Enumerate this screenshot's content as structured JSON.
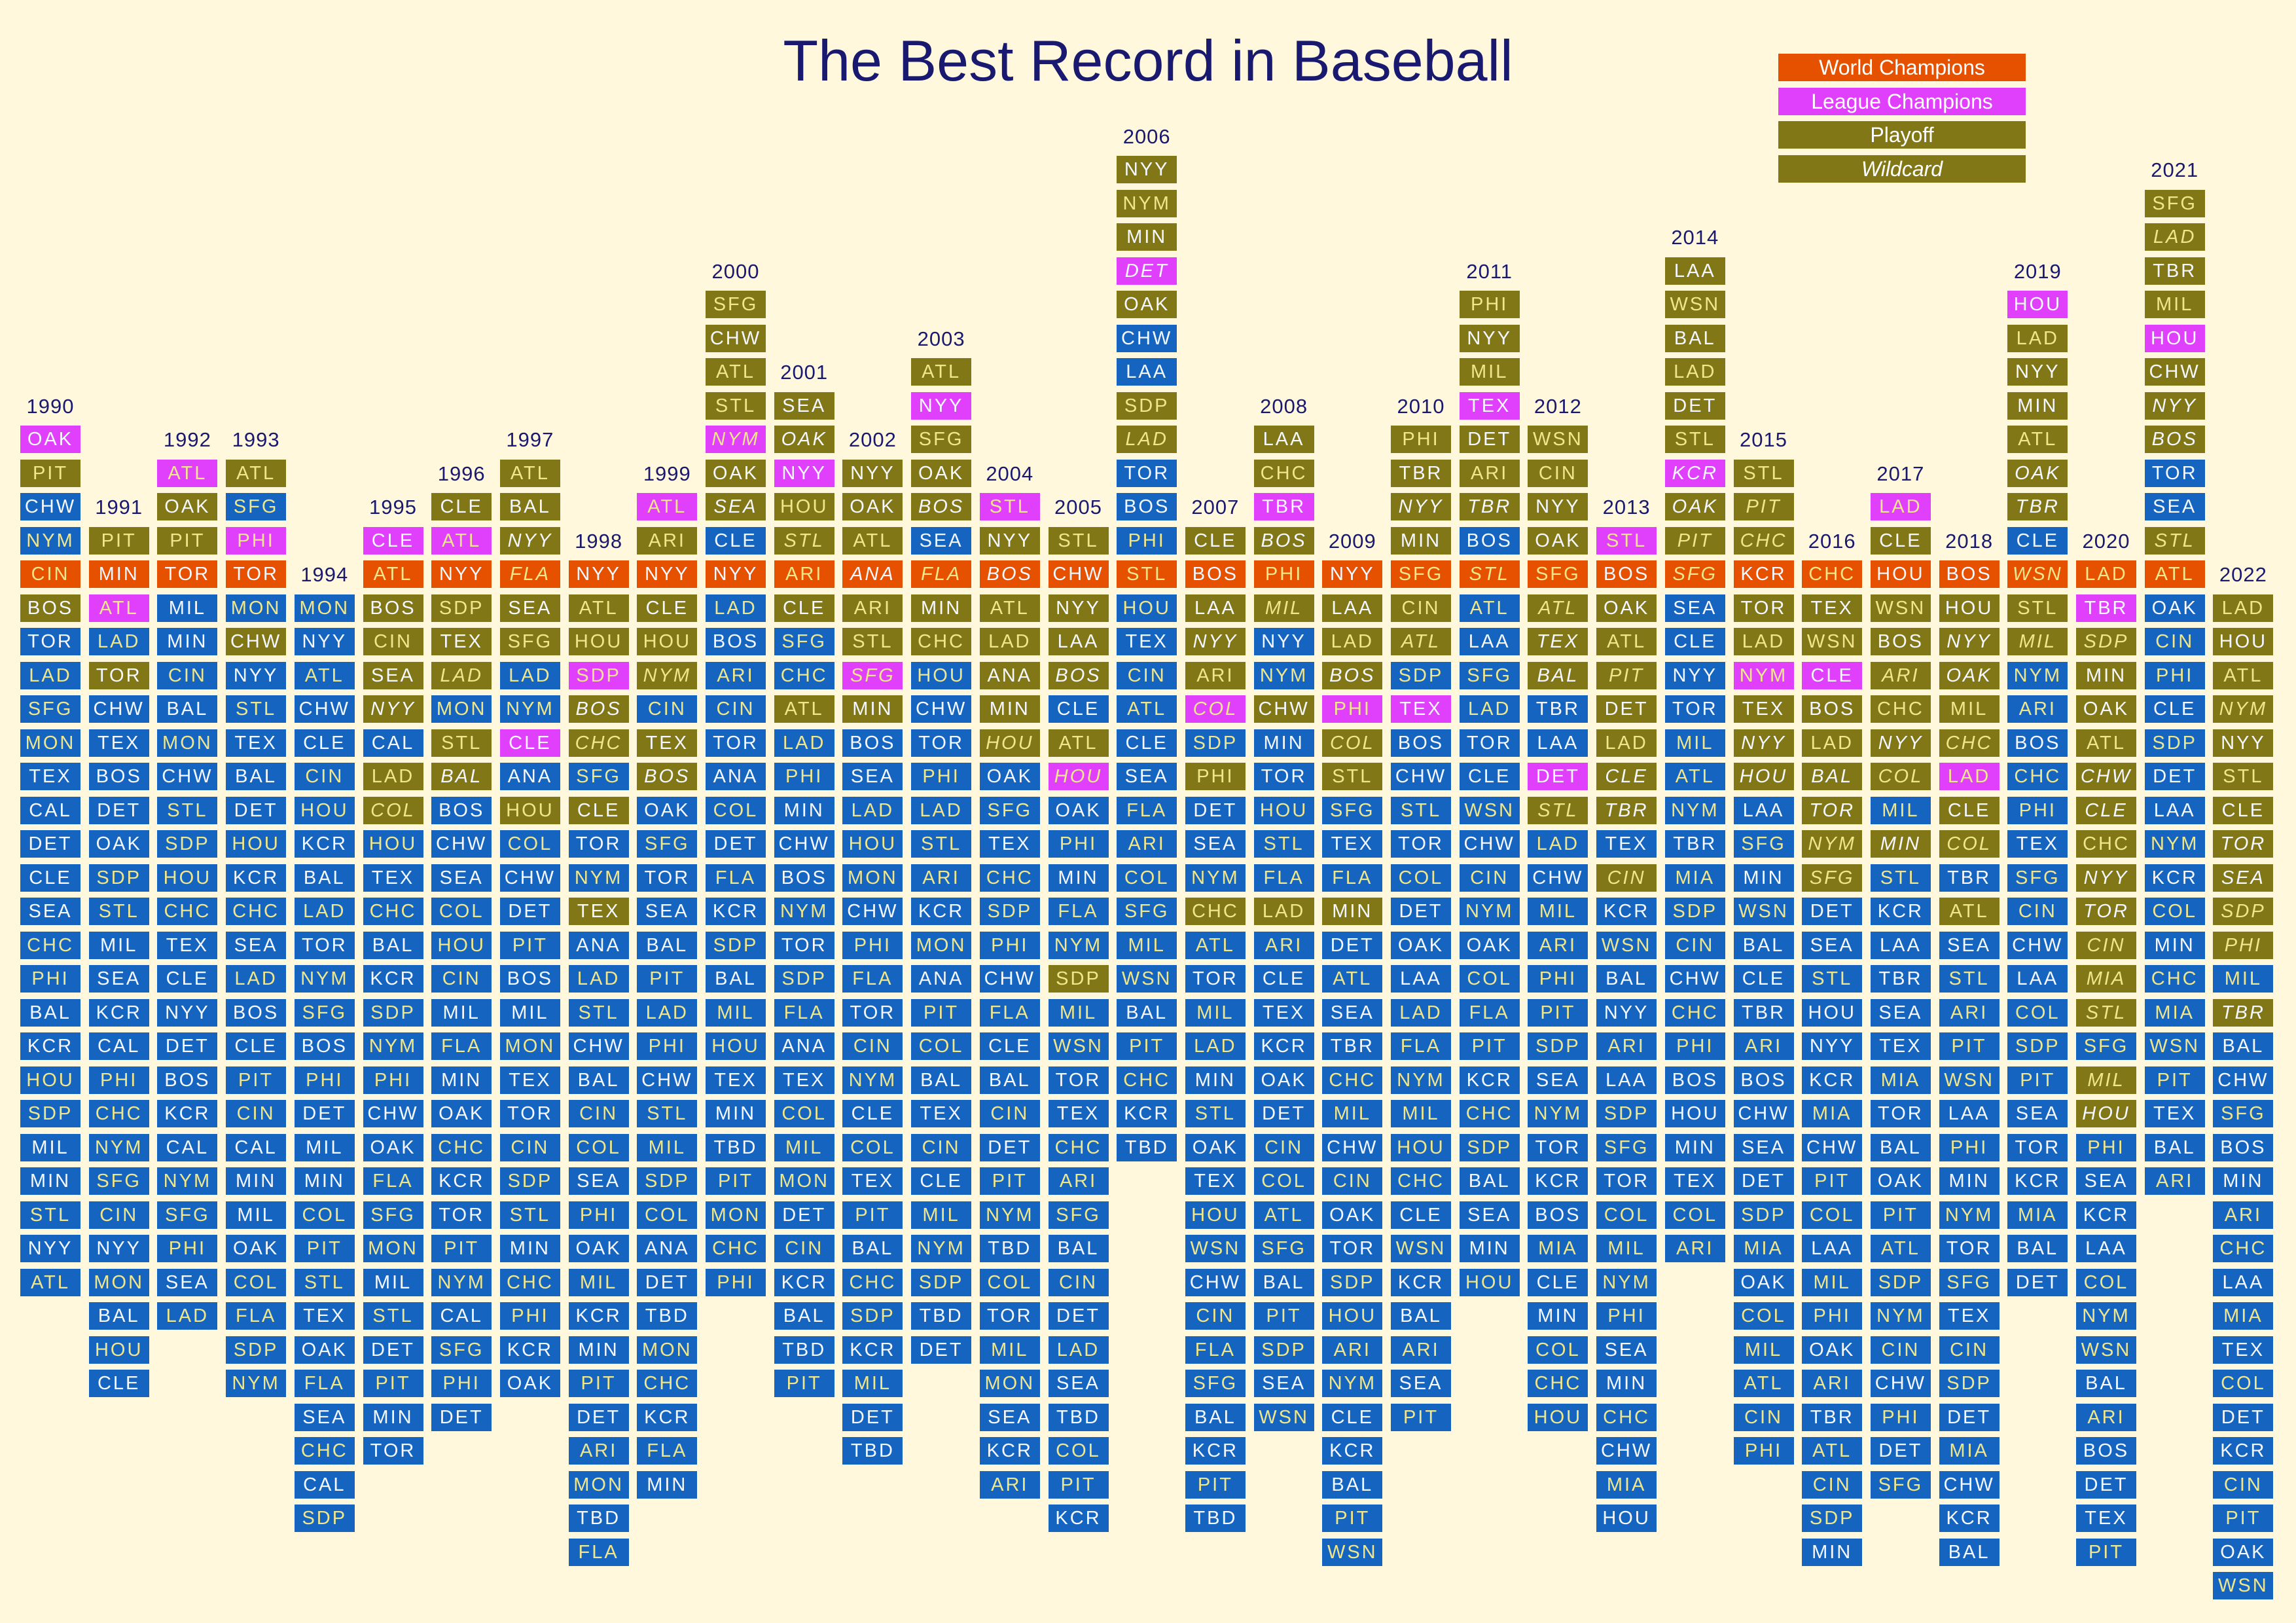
{
  "title": "The Best Record in Baseball",
  "legend": [
    {
      "label": "World Champions",
      "color": "#E65100",
      "italic": false
    },
    {
      "label": "League Champions",
      "color": "#E040FB",
      "italic": false
    },
    {
      "label": "Playoff",
      "color": "#827717",
      "italic": false
    },
    {
      "label": "Wildcard",
      "color": "#827717",
      "italic": true
    }
  ],
  "chart_data": {
    "type": "table",
    "title": "The Best Record in Baseball",
    "description_codes": {
      "W": "World Champions",
      "L": "League Champions",
      "P": "Playoff",
      "i": "Wildcard"
    },
    "colors": {
      "background": "#FFF8DC",
      "non_playoff": "#1565C0",
      "W": "#E65100",
      "L": "#E040FB",
      "P": "#827717",
      "al_text": "#F5F8FF",
      "nl_text": "#F0E68C",
      "title": "#191970"
    },
    "years": [
      {
        "year": "1990",
        "teams": "OAK:L PIT:P CHW NYM CIN:W BOS:P TOR LAD SFG MON TEX CAL DET CLE SEA CHC PHI BAL KCR HOU SDP MIL MIN STL NYY ATL"
      },
      {
        "year": "1991",
        "teams": "PIT:P MIN:W ATL:L LAD TOR:P CHW TEX BOS DET OAK SDP STL MIL SEA KCR CAL PHI CHC NYM SFG CIN NYY MON BAL HOU CLE"
      },
      {
        "year": "1992",
        "teams": "ATL:L OAK:P PIT:P TOR:W MIL MIN CIN BAL MON CHW STL SDP HOU CHC TEX CLE NYY DET BOS KCR CAL NYM SFG PHI SEA LAD"
      },
      {
        "year": "1993",
        "teams": "ATL:P SFG PHI:L TOR:W MON CHW:P NYY STL TEX BAL DET HOU KCR CHC SEA LAD BOS CLE PIT CIN CAL MIN MIL OAK COL FLA SDP NYM"
      },
      {
        "year": "1994",
        "teams": "MON NYY ATL CHW CLE CIN HOU KCR BAL LAD TOR NYM SFG BOS PHI DET MIL MIN COL PIT STL TEX OAK FLA SEA CHC CAL SDP"
      },
      {
        "year": "1995",
        "teams": "CLE:L ATL:W BOS:P CIN:P SEA:P NYY:Pi CAL LAD:P COL:Pi HOU TEX CHC BAL KCR SDP NYM PHI CHW OAK FLA SFG MON MIL STL DET PIT MIN TOR"
      },
      {
        "year": "1996",
        "teams": "CLE:P ATL:L NYY:W SDP:P TEX:P LAD:Pi MON STL:P BAL:Pi BOS CHW SEA COL HOU CIN MIL FLA MIN OAK CHC KCR TOR PIT NYM CAL SFG PHI DET"
      },
      {
        "year": "1997",
        "teams": "ATL:P BAL:P NYY:Pi FLA:Wi SEA:P SFG:P LAD NYM CLE:L ANA HOU:P COL CHW DET PIT BOS MIL MON TEX TOR CIN SDP STL MIN CHC PHI KCR OAK"
      },
      {
        "year": "1998",
        "teams": "NYY:W ATL:P HOU:P SDP:L BOS:Pi CHC:Pi SFG CLE:P TOR NYM TEX:P ANA LAD STL CHW BAL CIN COL SEA PHI OAK MIL KCR MIN PIT DET ARI MON TBD FLA"
      },
      {
        "year": "1999",
        "teams": "ATL:L ARI:P NYY:W CLE:P HOU:P NYM:Pi CIN TEX:P BOS:Pi OAK SFG TOR SEA BAL PIT LAD PHI CHW STL MIL SDP COL ANA DET TBD MON CHC KCR FLA MIN"
      },
      {
        "year": "2000",
        "teams": "SFG:P CHW:P ATL:P STL:P NYM:Li OAK:P SEA:Pi CLE NYY:W LAD BOS ARI CIN TOR ANA COL DET FLA KCR SDP BAL MIL HOU TEX MIN TBD PIT MON CHC PHI"
      },
      {
        "year": "2001",
        "teams": "SEA:P OAK:Pi NYY:L HOU:P STL:Pi ARI:W CLE:P SFG CHC ATL:P LAD PHI MIN CHW BOS NYM TOR SDP FLA ANA TEX COL MIL MON DET CIN KCR BAL TBD PIT"
      },
      {
        "year": "2002",
        "teams": "NYY:P OAK:P ATL:P ANA:Wi ARI:P STL:P SFG:Li MIN:P BOS SEA LAD HOU MON CHW PHI FLA TOR CIN NYM CLE COL TEX PIT BAL CHC SDP KCR MIL DET TBD"
      },
      {
        "year": "2003",
        "teams": "ATL:P NYY:L SFG:P OAK:P BOS:Pi SEA FLA:Wi MIN:P CHC:P HOU CHW TOR PHI LAD STL ARI KCR MON ANA PIT COL BAL TEX CIN CLE MIL NYM SDP TBD DET"
      },
      {
        "year": "2004",
        "teams": "STL:L NYY:P BOS:Wi ATL:P LAD:P ANA:P MIN:P HOU:Pi OAK SFG TEX CHC SDP PHI CHW FLA CLE BAL CIN DET PIT NYM TBD COL TOR MIL MON SEA KCR ARI"
      },
      {
        "year": "2005",
        "teams": "STL:P CHW:W NYY:P LAA:P BOS:Pi CLE ATL:P HOU:Li OAK PHI MIN FLA NYM SDP:P MIL WSN TOR TEX CHC ARI SFG BAL CIN DET LAD SEA TBD COL PIT KCR"
      },
      {
        "year": "2006",
        "teams": "NYY:P NYM:P MIN:P DET:Li OAK:P CHW LAA SDP:P LAD:Pi TOR BOS PHI STL:W HOU TEX CIN ATL CLE SEA FLA ARI COL SFG MIL WSN BAL PIT CHC KCR TBD"
      },
      {
        "year": "2007",
        "teams": "CLE:P BOS:W LAA:P NYY:Pi ARI:P COL:Li SDP PHI:P DET SEA NYM CHC:P ATL TOR MIL LAD MIN STL OAK TEX HOU WSN CHW CIN FLA SFG BAL KCR PIT TBD"
      },
      {
        "year": "2008",
        "teams": "LAA:P CHC:P TBR:L BOS:Pi PHI:W MIL:Pi NYY NYM CHW:P MIN TOR HOU STL FLA LAD:P ARI CLE TEX KCR OAK DET CIN COL ATL SFG BAL PIT SDP SEA WSN"
      },
      {
        "year": "2009",
        "teams": "NYY:W LAA:P LAD:P BOS:Pi PHI:L COL:Pi STL:P SFG TEX FLA MIN:P DET ATL SEA TBR CHC MIL CHW CIN OAK TOR SDP HOU ARI NYM CLE KCR BAL PIT WSN"
      },
      {
        "year": "2010",
        "teams": "PHI:P TBR:P NYY:Pi MIN:P SFG:W CIN:P ATL:Pi SDP TEX:L BOS CHW STL TOR COL DET OAK LAA LAD FLA NYM MIL HOU CHC CLE WSN KCR BAL ARI SEA PIT"
      },
      {
        "year": "2011",
        "teams": "PHI:P NYY:P MIL:P TEX:L DET:P ARI:P TBR:Pi BOS STL:Wi ATL LAA SFG LAD TOR CLE WSN CHW CIN NYM OAK COL FLA PIT KCR CHC SDP BAL SEA MIN HOU"
      },
      {
        "year": "2012",
        "teams": "WSN:P CIN:P NYY:P OAK:P SFG:W ATL:Pi TEX:Pi BAL:Pi TBR LAA DET:L STL:Pi LAD CHW MIL ARI PHI PIT SDP SEA NYM TOR KCR BOS MIA CLE MIN COL CHC HOU"
      },
      {
        "year": "2013",
        "teams": "STL:L BOS:W OAK:P ATL:P PIT:Pi DET:P LAD:P CLE:Pi TBR:Pi TEX CIN:Pi KCR WSN BAL NYY ARI LAA SDP SFG TOR COL MIL NYM PHI SEA MIN CHC CHW MIA HOU"
      },
      {
        "year": "2014",
        "teams": "LAA:P WSN:P BAL:P LAD:P DET:P STL:P KCR:Li OAK:Pi PIT:Pi SFG:Wi SEA CLE NYY TOR MIL ATL NYM TBR MIA SDP CIN CHW CHC PHI BOS HOU MIN TEX COL ARI"
      },
      {
        "year": "2015",
        "teams": "STL:P PIT:Pi CHC:Pi KCR:W TOR:P LAD:P NYM:L TEX:P NYY:Pi HOU:Pi LAA SFG MIN WSN BAL CLE TBR ARI BOS CHW SEA DET SDP MIA OAK COL MIL ATL CIN PHI"
      },
      {
        "year": "2016",
        "teams": "CHC:W TEX:P WSN:P CLE:L BOS:P LAD:P BAL:Pi TOR:Pi NYM:Pi SFG:Pi DET SEA STL HOU NYY KCR MIA CHW PIT COL LAA MIL PHI OAK ARI TBR ATL CIN SDP MIN"
      },
      {
        "year": "2017",
        "teams": "LAD:L CLE:P HOU:W WSN:P BOS:P ARI:Pi CHC:P NYY:Pi COL:Pi MIL MIN:Pi STL KCR LAA TBR SEA TEX MIA TOR BAL OAK PIT ATL SDP NYM CIN CHW PHI DET SFG"
      },
      {
        "year": "2018",
        "teams": "BOS:W HOU:P NYY:Pi OAK:Pi MIL:P CHC:Pi LAD:L CLE:P COL:Pi TBR ATL:P SEA STL ARI PIT WSN LAA PHI MIN NYM TOR SFG TEX CIN SDP DET MIA CHW KCR BAL"
      },
      {
        "year": "2019",
        "teams": "HOU:L LAD:P NYY:P MIN:P ATL:P OAK:Pi TBR:Pi CLE WSN:Wi STL:P MIL:Pi NYM ARI BOS CHC PHI TEX SFG CIN CHW LAA COL SDP PIT SEA TOR KCR MIA BAL DET"
      },
      {
        "year": "2020",
        "teams": "LAD:W TBR:L SDP:Pi MIN:P OAK:P ATL:P CHW:Pi CLE:Pi CHC:P NYY:Pi TOR:Pi CIN:Pi MIA:Pi STL:Pi SFG MIL:Pi HOU:Pi PHI SEA KCR LAA COL NYM WSN BAL ARI BOS DET TEX PIT"
      },
      {
        "year": "2021",
        "teams": "SFG:P LAD:Pi TBR:P MIL:P HOU:L CHW:P NYY:Pi BOS:Pi TOR SEA STL:Pi ATL:W OAK CIN PHI CLE SDP DET LAA NYM KCR COL MIN CHC MIA WSN PIT TEX BAL ARI"
      },
      {
        "year": "2022",
        "teams": "LAD:P HOU:P ATL:P NYM:Pi NYY:P STL:P CLE:P TOR:Pi SEA:Pi SDP:Pi PHI:Pi MIL TBR:Pi BAL CHW SFG BOS MIN ARI CHC LAA MIA TEX COL DET KCR CIN PIT OAK WSN"
      }
    ]
  }
}
